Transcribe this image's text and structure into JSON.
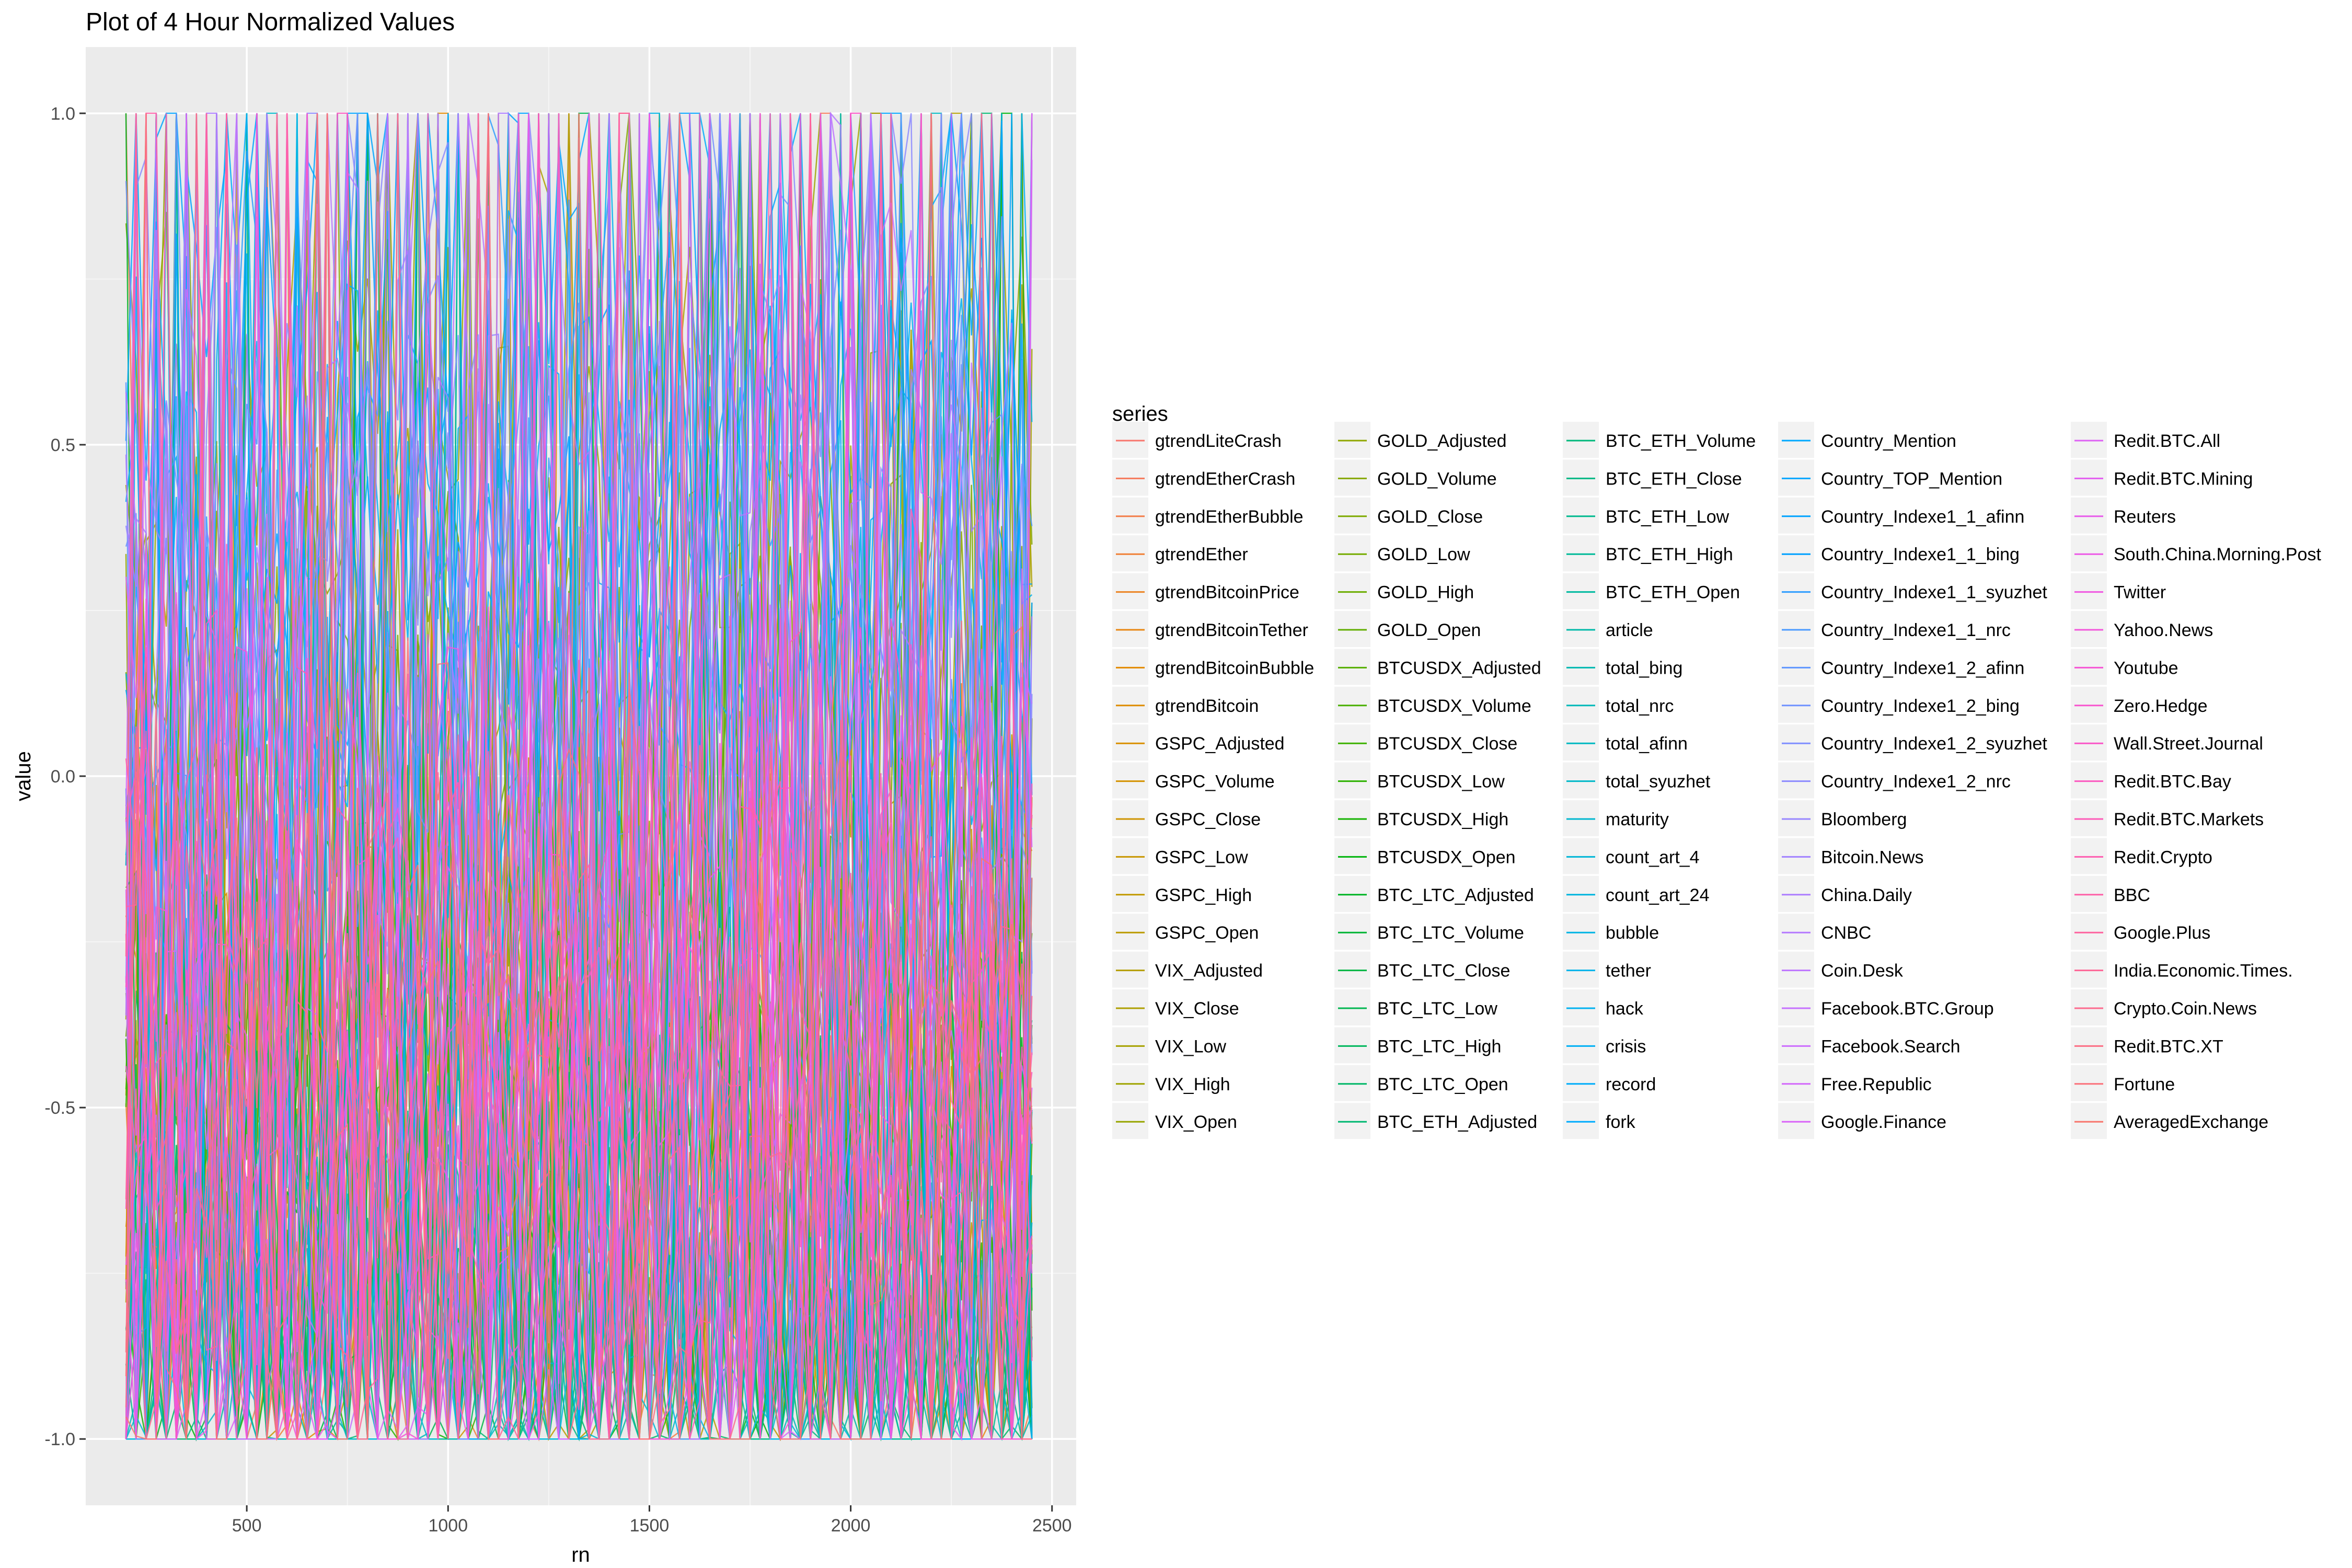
{
  "chart_data": {
    "type": "line",
    "title": "Plot of 4 Hour Normalized Values",
    "xlabel": "rn",
    "ylabel": "value",
    "xlim": [
      100,
      2560
    ],
    "ylim": [
      -1.1,
      1.1
    ],
    "x_ticks": [
      500,
      1000,
      1500,
      2000,
      2500
    ],
    "x_tick_labels": [
      "500",
      "1000",
      "1500",
      "2000",
      "2500"
    ],
    "y_ticks": [
      -1.0,
      -0.5,
      0.0,
      0.5,
      1.0
    ],
    "y_tick_labels": [
      "-1.0",
      "-0.5",
      "0.0",
      "0.5",
      "1.0"
    ],
    "x_range": [
      200,
      2450
    ],
    "grid": true,
    "background": "#ebebeb",
    "legend_title": "series",
    "legend_position": "right",
    "series": [
      {
        "name": "gtrendLiteCrash",
        "color": "#F8766D"
      },
      {
        "name": "gtrendEtherCrash",
        "color": "#F67A5B"
      },
      {
        "name": "gtrendEtherBubble",
        "color": "#F37D49"
      },
      {
        "name": "gtrendEther",
        "color": "#F08036"
      },
      {
        "name": "gtrendBitcoinPrice",
        "color": "#EC8424"
      },
      {
        "name": "gtrendBitcoinTether",
        "color": "#E88712"
      },
      {
        "name": "gtrendBitcoinBubble",
        "color": "#E38A00"
      },
      {
        "name": "gtrendBitcoin",
        "color": "#DE8C00"
      },
      {
        "name": "GSPC_Adjusted",
        "color": "#D98F00"
      },
      {
        "name": "GSPC_Volume",
        "color": "#D49200"
      },
      {
        "name": "GSPC_Close",
        "color": "#CE9400"
      },
      {
        "name": "GSPC_Low",
        "color": "#C89700"
      },
      {
        "name": "GSPC_High",
        "color": "#C29900"
      },
      {
        "name": "GSPC_Open",
        "color": "#BB9B00"
      },
      {
        "name": "VIX_Adjusted",
        "color": "#B59D00"
      },
      {
        "name": "VIX_Close",
        "color": "#AE9F00"
      },
      {
        "name": "VIX_Low",
        "color": "#A6A100"
      },
      {
        "name": "VIX_High",
        "color": "#9FA300"
      },
      {
        "name": "VIX_Open",
        "color": "#97A500"
      },
      {
        "name": "GOLD_Adjusted",
        "color": "#8FA700"
      },
      {
        "name": "GOLD_Volume",
        "color": "#87A800"
      },
      {
        "name": "GOLD_Close",
        "color": "#7EAA00"
      },
      {
        "name": "GOLD_Low",
        "color": "#75AB00"
      },
      {
        "name": "GOLD_High",
        "color": "#6BAD00"
      },
      {
        "name": "GOLD_Open",
        "color": "#61AE00"
      },
      {
        "name": "BTCUSDX_Adjusted",
        "color": "#56AF00"
      },
      {
        "name": "BTCUSDX_Volume",
        "color": "#4AB000"
      },
      {
        "name": "BTCUSDX_Close",
        "color": "#3CB100"
      },
      {
        "name": "BTCUSDX_Low",
        "color": "#2CB200"
      },
      {
        "name": "BTCUSDX_High",
        "color": "#14B300"
      },
      {
        "name": "BTCUSDX_Open",
        "color": "#00B40C"
      },
      {
        "name": "BTC_LTC_Adjusted",
        "color": "#00B424"
      },
      {
        "name": "BTC_LTC_Volume",
        "color": "#00B535"
      },
      {
        "name": "BTC_LTC_Close",
        "color": "#00B643"
      },
      {
        "name": "BTC_LTC_Low",
        "color": "#00B650"
      },
      {
        "name": "BTC_LTC_High",
        "color": "#00B75C"
      },
      {
        "name": "BTC_LTC_Open",
        "color": "#00B767"
      },
      {
        "name": "BTC_ETH_Adjusted",
        "color": "#00B871"
      },
      {
        "name": "BTC_ETH_Volume",
        "color": "#00B87B"
      },
      {
        "name": "BTC_ETH_Close",
        "color": "#00B885"
      },
      {
        "name": "BTC_ETH_Low",
        "color": "#00B98E"
      },
      {
        "name": "BTC_ETH_High",
        "color": "#00B997"
      },
      {
        "name": "BTC_ETH_Open",
        "color": "#00B9A0"
      },
      {
        "name": "article",
        "color": "#00B9A8"
      },
      {
        "name": "total_bing",
        "color": "#00B9B1"
      },
      {
        "name": "total_nrc",
        "color": "#00B9B9"
      },
      {
        "name": "total_afinn",
        "color": "#00B8C1"
      },
      {
        "name": "total_syuzhet",
        "color": "#00B8C8"
      },
      {
        "name": "maturity",
        "color": "#00B7D0"
      },
      {
        "name": "count_art_4",
        "color": "#00B6D7"
      },
      {
        "name": "count_art_24",
        "color": "#00B5DE"
      },
      {
        "name": "bubble",
        "color": "#00B4E4"
      },
      {
        "name": "tether",
        "color": "#00B3EA"
      },
      {
        "name": "hack",
        "color": "#00B1F0"
      },
      {
        "name": "crisis",
        "color": "#00AFF5"
      },
      {
        "name": "record",
        "color": "#00ADFA"
      },
      {
        "name": "fork",
        "color": "#00ABFE"
      },
      {
        "name": "Country_Mention",
        "color": "#00A9FF"
      },
      {
        "name": "Country_TOP_Mention",
        "color": "#00A6FF"
      },
      {
        "name": "Country_Indexe1_1_afinn",
        "color": "#00A3FF"
      },
      {
        "name": "Country_Indexe1_1_bing",
        "color": "#00A0FF"
      },
      {
        "name": "Country_Indexe1_1_syuzhet",
        "color": "#2E9DFF"
      },
      {
        "name": "Country_Indexe1_1_nrc",
        "color": "#4A99FF"
      },
      {
        "name": "Country_Indexe1_2_afinn",
        "color": "#5F96FF"
      },
      {
        "name": "Country_Indexe1_2_bing",
        "color": "#7092FF"
      },
      {
        "name": "Country_Indexe1_2_syuzhet",
        "color": "#7F8EFF"
      },
      {
        "name": "Country_Indexe1_2_nrc",
        "color": "#8C8AFF"
      },
      {
        "name": "Bloomberg",
        "color": "#9886FF"
      },
      {
        "name": "Bitcoin.News",
        "color": "#A281FF"
      },
      {
        "name": "China.Daily",
        "color": "#AC7DFF"
      },
      {
        "name": "CNBC",
        "color": "#B579FF"
      },
      {
        "name": "Coin.Desk",
        "color": "#BD74FF"
      },
      {
        "name": "Facebook.BTC.Group",
        "color": "#C570FF"
      },
      {
        "name": "Facebook.Search",
        "color": "#CC6CFE"
      },
      {
        "name": "Free.Republic",
        "color": "#D368FB"
      },
      {
        "name": "Google.Finance",
        "color": "#D964F8"
      },
      {
        "name": "Redit.BTC.All",
        "color": "#DE61F4"
      },
      {
        "name": "Redit.BTC.Mining",
        "color": "#E35EF0"
      },
      {
        "name": "Reuters",
        "color": "#E85BEB"
      },
      {
        "name": "South.China.Morning.Post",
        "color": "#EC59E6"
      },
      {
        "name": "Twitter",
        "color": "#F057E1"
      },
      {
        "name": "Yahoo.News",
        "color": "#F356DB"
      },
      {
        "name": "Youtube",
        "color": "#F655D5"
      },
      {
        "name": "Zero.Hedge",
        "color": "#F855CE"
      },
      {
        "name": "Wall.Street.Journal",
        "color": "#FA56C7"
      },
      {
        "name": "Redit.BTC.Bay",
        "color": "#FC58C0"
      },
      {
        "name": "Redit.BTC.Markets",
        "color": "#FD5AB8"
      },
      {
        "name": "Redit.Crypto",
        "color": "#FE5DB0"
      },
      {
        "name": "BBC",
        "color": "#FE60A8"
      },
      {
        "name": "Google.Plus",
        "color": "#FE639F"
      },
      {
        "name": "India.Economic.Times.",
        "color": "#FE6696"
      },
      {
        "name": "Crypto.Coin.News",
        "color": "#FD6A8D"
      },
      {
        "name": "Redit.BTC.XT",
        "color": "#FC6E84"
      },
      {
        "name": "Fortune",
        "color": "#FB717A"
      },
      {
        "name": "AveragedExchange",
        "color": "#F8766D"
      }
    ]
  }
}
